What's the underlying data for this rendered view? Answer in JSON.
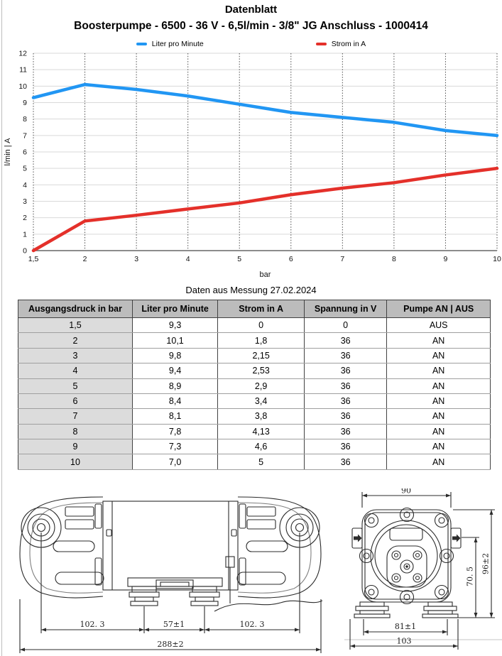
{
  "page": {
    "title": "Datenblatt",
    "subtitle": "Boosterpumpe - 6500 - 36 V - 6,5l/min - 3/8\" JG Anschluss - 1000414"
  },
  "chart_data": {
    "type": "line",
    "x": [
      1.5,
      2,
      3,
      4,
      5,
      6,
      7,
      8,
      9,
      10
    ],
    "x_tick_labels": [
      "1,5",
      "2",
      "3",
      "4",
      "5",
      "6",
      "7",
      "8",
      "9",
      "10"
    ],
    "xlabel": "bar",
    "ylabel": "l/min | A",
    "ylim": [
      0,
      12
    ],
    "y_ticks": [
      0,
      1,
      2,
      3,
      4,
      5,
      6,
      7,
      8,
      9,
      10,
      11,
      12
    ],
    "grid": "vertical-dashed-and-horizontal-light",
    "legend_position": "top",
    "series": [
      {
        "name": "Liter pro Minute",
        "color": "#2196f3",
        "values": [
          9.3,
          10.1,
          9.8,
          9.4,
          8.9,
          8.4,
          8.1,
          7.8,
          7.3,
          7.0
        ]
      },
      {
        "name": "Strom in A",
        "color": "#e4302a",
        "values": [
          0,
          1.8,
          2.15,
          2.53,
          2.9,
          3.4,
          3.8,
          4.13,
          4.6,
          5
        ]
      }
    ]
  },
  "table": {
    "title": "Daten aus Messung 27.02.2024",
    "headers": [
      "Ausgangsdruck in bar",
      "Liter pro Minute",
      "Strom in A",
      "Spannung in V",
      "Pumpe AN | AUS"
    ],
    "rows": [
      [
        "1,5",
        "9,3",
        "0",
        "0",
        "AUS"
      ],
      [
        "2",
        "10,1",
        "1,8",
        "36",
        "AN"
      ],
      [
        "3",
        "9,8",
        "2,15",
        "36",
        "AN"
      ],
      [
        "4",
        "9,4",
        "2,53",
        "36",
        "AN"
      ],
      [
        "5",
        "8,9",
        "2,9",
        "36",
        "AN"
      ],
      [
        "6",
        "8,4",
        "3,4",
        "36",
        "AN"
      ],
      [
        "7",
        "8,1",
        "3,8",
        "36",
        "AN"
      ],
      [
        "8",
        "7,8",
        "4,13",
        "36",
        "AN"
      ],
      [
        "9",
        "7,3",
        "4,6",
        "36",
        "AN"
      ],
      [
        "10",
        "7,0",
        "5",
        "36",
        "AN"
      ]
    ]
  },
  "drawings": {
    "side_view": {
      "dim_left": "102. 3",
      "dim_center": "57±1",
      "dim_right": "102. 3",
      "dim_total": "288±2"
    },
    "front_view": {
      "dim_width_top": "90",
      "dim_height": "96±2",
      "dim_inner_height": "70. 5",
      "dim_feet": "81±1",
      "dim_base": "103"
    }
  },
  "colors": {
    "series_flow": "#2196f3",
    "series_current": "#e4302a",
    "table_header_bg": "#bcbcbc",
    "table_first_col_bg": "#dcdcdc"
  }
}
